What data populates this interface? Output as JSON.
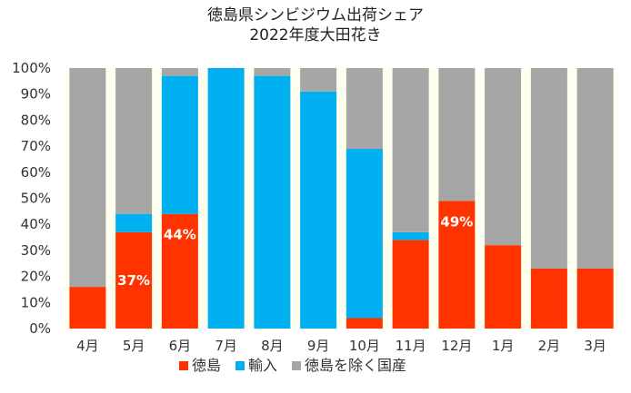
{
  "chart_data": {
    "type": "bar",
    "stacked": true,
    "normalized": true,
    "title": [
      "徳島県シンビジウム出荷シェア",
      "2022年度大田花き"
    ],
    "categories": [
      "4月",
      "5月",
      "6月",
      "7月",
      "8月",
      "9月",
      "10月",
      "11月",
      "12月",
      "1月",
      "2月",
      "3月"
    ],
    "series": [
      {
        "name": "徳島",
        "color": "#ff3300",
        "values": [
          16,
          37,
          44,
          0,
          0,
          0,
          4,
          34,
          49,
          32,
          23,
          23
        ]
      },
      {
        "name": "輸入",
        "color": "#00b0f0",
        "values": [
          0,
          7,
          53,
          100,
          97,
          91,
          65,
          3,
          0,
          0,
          0,
          0
        ]
      },
      {
        "name": "徳島を除く国産",
        "color": "#a6a6a6",
        "values": [
          84,
          56,
          3,
          0,
          3,
          9,
          31,
          63,
          51,
          68,
          77,
          77
        ]
      }
    ],
    "data_labels": [
      {
        "category": "5月",
        "series": "徳島",
        "text": "37%"
      },
      {
        "category": "6月",
        "series": "徳島",
        "text": "44%"
      },
      {
        "category": "12月",
        "series": "徳島",
        "text": "49%"
      }
    ],
    "yticks": [
      "0%",
      "10%",
      "20%",
      "30%",
      "40%",
      "50%",
      "60%",
      "70%",
      "80%",
      "90%",
      "100%"
    ],
    "ylim": [
      0,
      100
    ],
    "plot_background": "#fffff0",
    "grid": false,
    "legend_position": "bottom"
  }
}
